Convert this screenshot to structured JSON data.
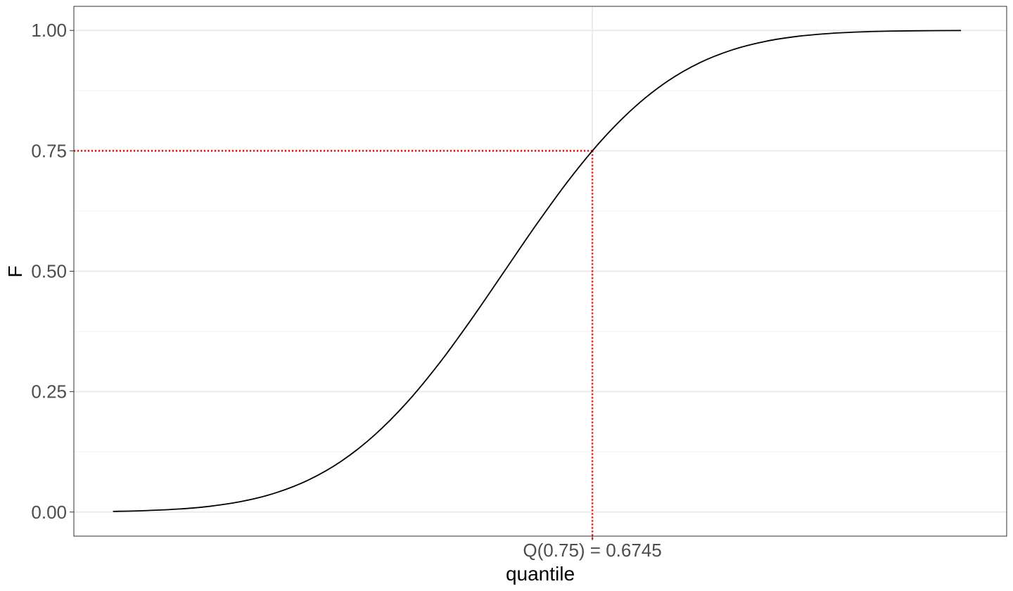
{
  "chart_data": {
    "type": "line",
    "title": "",
    "xlabel": "quantile",
    "ylabel": "F",
    "xlim": [
      -3.3,
      3.85
    ],
    "ylim": [
      -0.05,
      1.05
    ],
    "grid": true,
    "legend": "none",
    "y_ticks": [
      0,
      0.25,
      0.5,
      0.75,
      1
    ],
    "y_tick_labels": [
      "0.00",
      "0.25",
      "0.50",
      "0.75",
      "1.00"
    ],
    "x_ticks": [
      0.6745
    ],
    "x_tick_labels": [
      "Q(0.75) = 0.6745"
    ],
    "series": [
      {
        "x": [
          -3.0,
          -2.75,
          -2.5,
          -2.25,
          -2.0,
          -1.75,
          -1.5,
          -1.25,
          -1.0,
          -0.75,
          -0.5,
          -0.25,
          0.0,
          0.25,
          0.5,
          0.75,
          1.0,
          1.25,
          1.5,
          1.75,
          2.0,
          2.25,
          2.5,
          2.75,
          3.0,
          3.25,
          3.5
        ],
        "y": [
          0.0013,
          0.003,
          0.0062,
          0.0122,
          0.0228,
          0.0401,
          0.0668,
          0.1056,
          0.1587,
          0.2266,
          0.3085,
          0.4013,
          0.5,
          0.5987,
          0.6915,
          0.7734,
          0.8413,
          0.8944,
          0.9332,
          0.9599,
          0.9772,
          0.9878,
          0.9938,
          0.997,
          0.9987,
          0.9994,
          0.9998
        ],
        "color": "#000000"
      }
    ],
    "reference": {
      "x": 0.6745,
      "y": 0.75,
      "color": "#ff0000"
    }
  }
}
